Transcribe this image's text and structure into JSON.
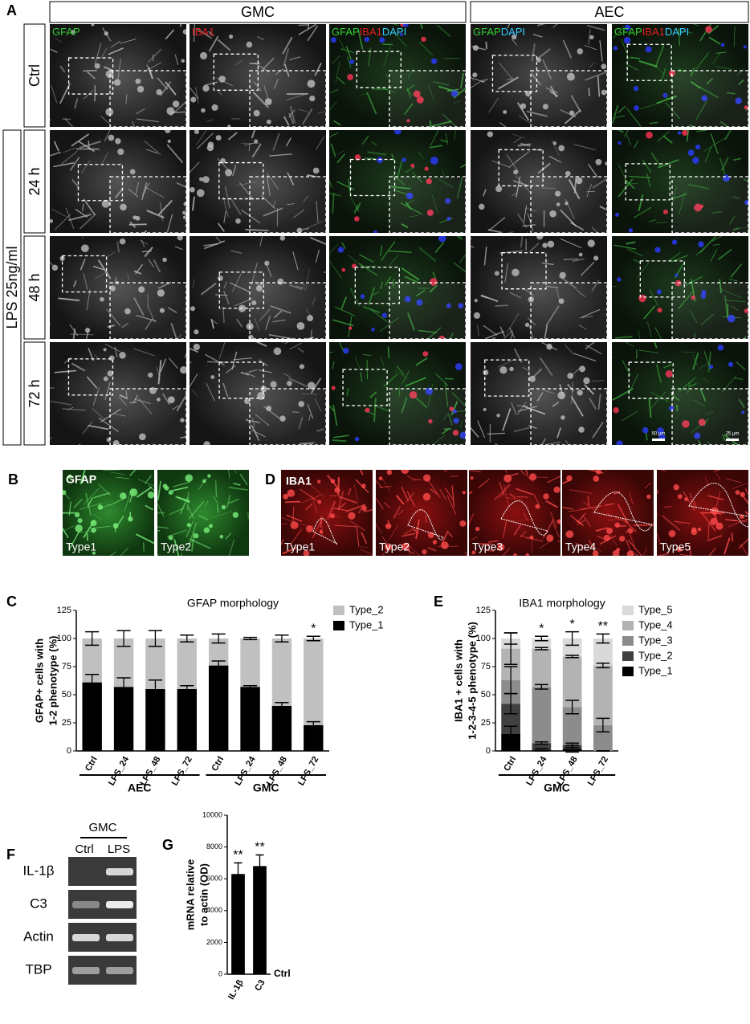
{
  "figure": {
    "panel_a": {
      "letter": "A",
      "groups": [
        "GMC",
        "AEC"
      ],
      "rows": [
        "Ctrl",
        "24 h",
        "48 h",
        "72 h"
      ],
      "treatment": "LPS 25ng/ml",
      "columns": [
        [
          {
            "text": "GFAP",
            "color": "#33cc33"
          }
        ],
        [
          {
            "text": "IBA1",
            "color": "#e02020"
          }
        ],
        [
          {
            "text": "GFAP",
            "color": "#33cc33"
          },
          {
            "text": "IBA1",
            "color": "#e02020"
          },
          {
            "text": "DAPI",
            "color": "#33ccff"
          }
        ],
        [
          {
            "text": "GFAP",
            "color": "#33cc33"
          },
          {
            "text": "DAPI",
            "color": "#33ccff"
          }
        ],
        [
          {
            "text": "GFAP",
            "color": "#33cc33"
          },
          {
            "text": "IBA1",
            "color": "#e02020"
          },
          {
            "text": "DAPI",
            "color": "#33ccff"
          }
        ]
      ],
      "scale_bars": [
        "50 µm",
        "25 µm"
      ]
    },
    "panel_b": {
      "letter": "B",
      "stain": "GFAP",
      "types": [
        "Type1",
        "Type2"
      ]
    },
    "panel_d": {
      "letter": "D",
      "stain": "IBA1",
      "types": [
        "Type1",
        "Type2",
        "Type3",
        "Type4",
        "Type5"
      ]
    },
    "panel_f": {
      "letter": "F",
      "group": "GMC",
      "lanes": [
        "Ctrl",
        "LPS"
      ],
      "genes": [
        "IL-1β",
        "C3",
        "Actin",
        "TBP"
      ]
    }
  },
  "chart_data": [
    {
      "type": "stacked-bar",
      "panel": "C",
      "title": "GFAP morphology",
      "ylabel": [
        "GFAP+ cells with",
        "1-2  phenotype (%)"
      ],
      "categories": [
        "Ctrl",
        "LPS_24",
        "LPS_48",
        "LPS_72",
        "Ctrl",
        "LPS_24",
        "LPS_48",
        "LPS_72"
      ],
      "groups": [
        "AEC",
        "GMC"
      ],
      "series": [
        {
          "name": "Type_1",
          "color": "#000000",
          "values": [
            61,
            57,
            55,
            55,
            76,
            57,
            40,
            23
          ],
          "errors": [
            7,
            8,
            8,
            3,
            4,
            1,
            3,
            3
          ]
        },
        {
          "name": "Type_2",
          "color": "#c0c0c0",
          "values": [
            39,
            43,
            45,
            45,
            24,
            43,
            60,
            77
          ],
          "errors": [
            6,
            7,
            7,
            3,
            4,
            1,
            3,
            2
          ]
        }
      ],
      "stars": [
        null,
        null,
        null,
        null,
        null,
        null,
        null,
        "*"
      ],
      "ylim": [
        0,
        125
      ],
      "yticks": [
        0,
        25,
        50,
        75,
        100,
        125
      ]
    },
    {
      "type": "stacked-bar",
      "panel": "E",
      "title": "IBA1 morphology",
      "ylabel": [
        "IBA1 + cells with",
        "1-2-3-4-5  phenotype (%)"
      ],
      "categories": [
        "Ctrl",
        "LPS_24",
        "LPS_48",
        "LPS_72"
      ],
      "groups": [
        "GMC"
      ],
      "series": [
        {
          "name": "Type_1",
          "color": "#000000",
          "values": [
            15,
            1,
            2,
            0
          ],
          "errors": [
            7,
            1,
            3,
            0
          ]
        },
        {
          "name": "Type_2",
          "color": "#404040",
          "values": [
            27,
            6,
            3,
            0
          ],
          "errors": [
            9,
            1,
            2,
            0
          ]
        },
        {
          "name": "Type_3",
          "color": "#8c8c8c",
          "values": [
            21,
            50,
            34,
            23
          ],
          "errors": [
            12,
            2,
            6,
            6
          ]
        },
        {
          "name": "Type_4",
          "color": "#b3b3b3",
          "values": [
            28,
            34,
            45,
            53
          ],
          "errors": [
            14,
            1,
            1,
            2
          ]
        },
        {
          "name": "Type_5",
          "color": "#d9d9d9",
          "values": [
            9,
            9,
            16,
            24
          ],
          "errors": [
            5,
            2,
            6,
            4
          ]
        }
      ],
      "stars": [
        null,
        "*",
        "*",
        "**"
      ],
      "ylim": [
        0,
        125
      ],
      "yticks": [
        0,
        25,
        50,
        75,
        100,
        125
      ]
    },
    {
      "type": "bar",
      "panel": "G",
      "ylabel": [
        "mRNA relative",
        "to actin (OD)"
      ],
      "categories": [
        "IL-1β",
        "C3"
      ],
      "color": "#000000",
      "values": [
        6300,
        6800
      ],
      "errors": [
        700,
        700
      ],
      "stars": [
        "**",
        "**"
      ],
      "baseline_label": "Ctrl",
      "ylim": [
        0,
        10000
      ],
      "yticks": [
        0,
        2000,
        4000,
        6000,
        8000,
        10000
      ]
    }
  ]
}
